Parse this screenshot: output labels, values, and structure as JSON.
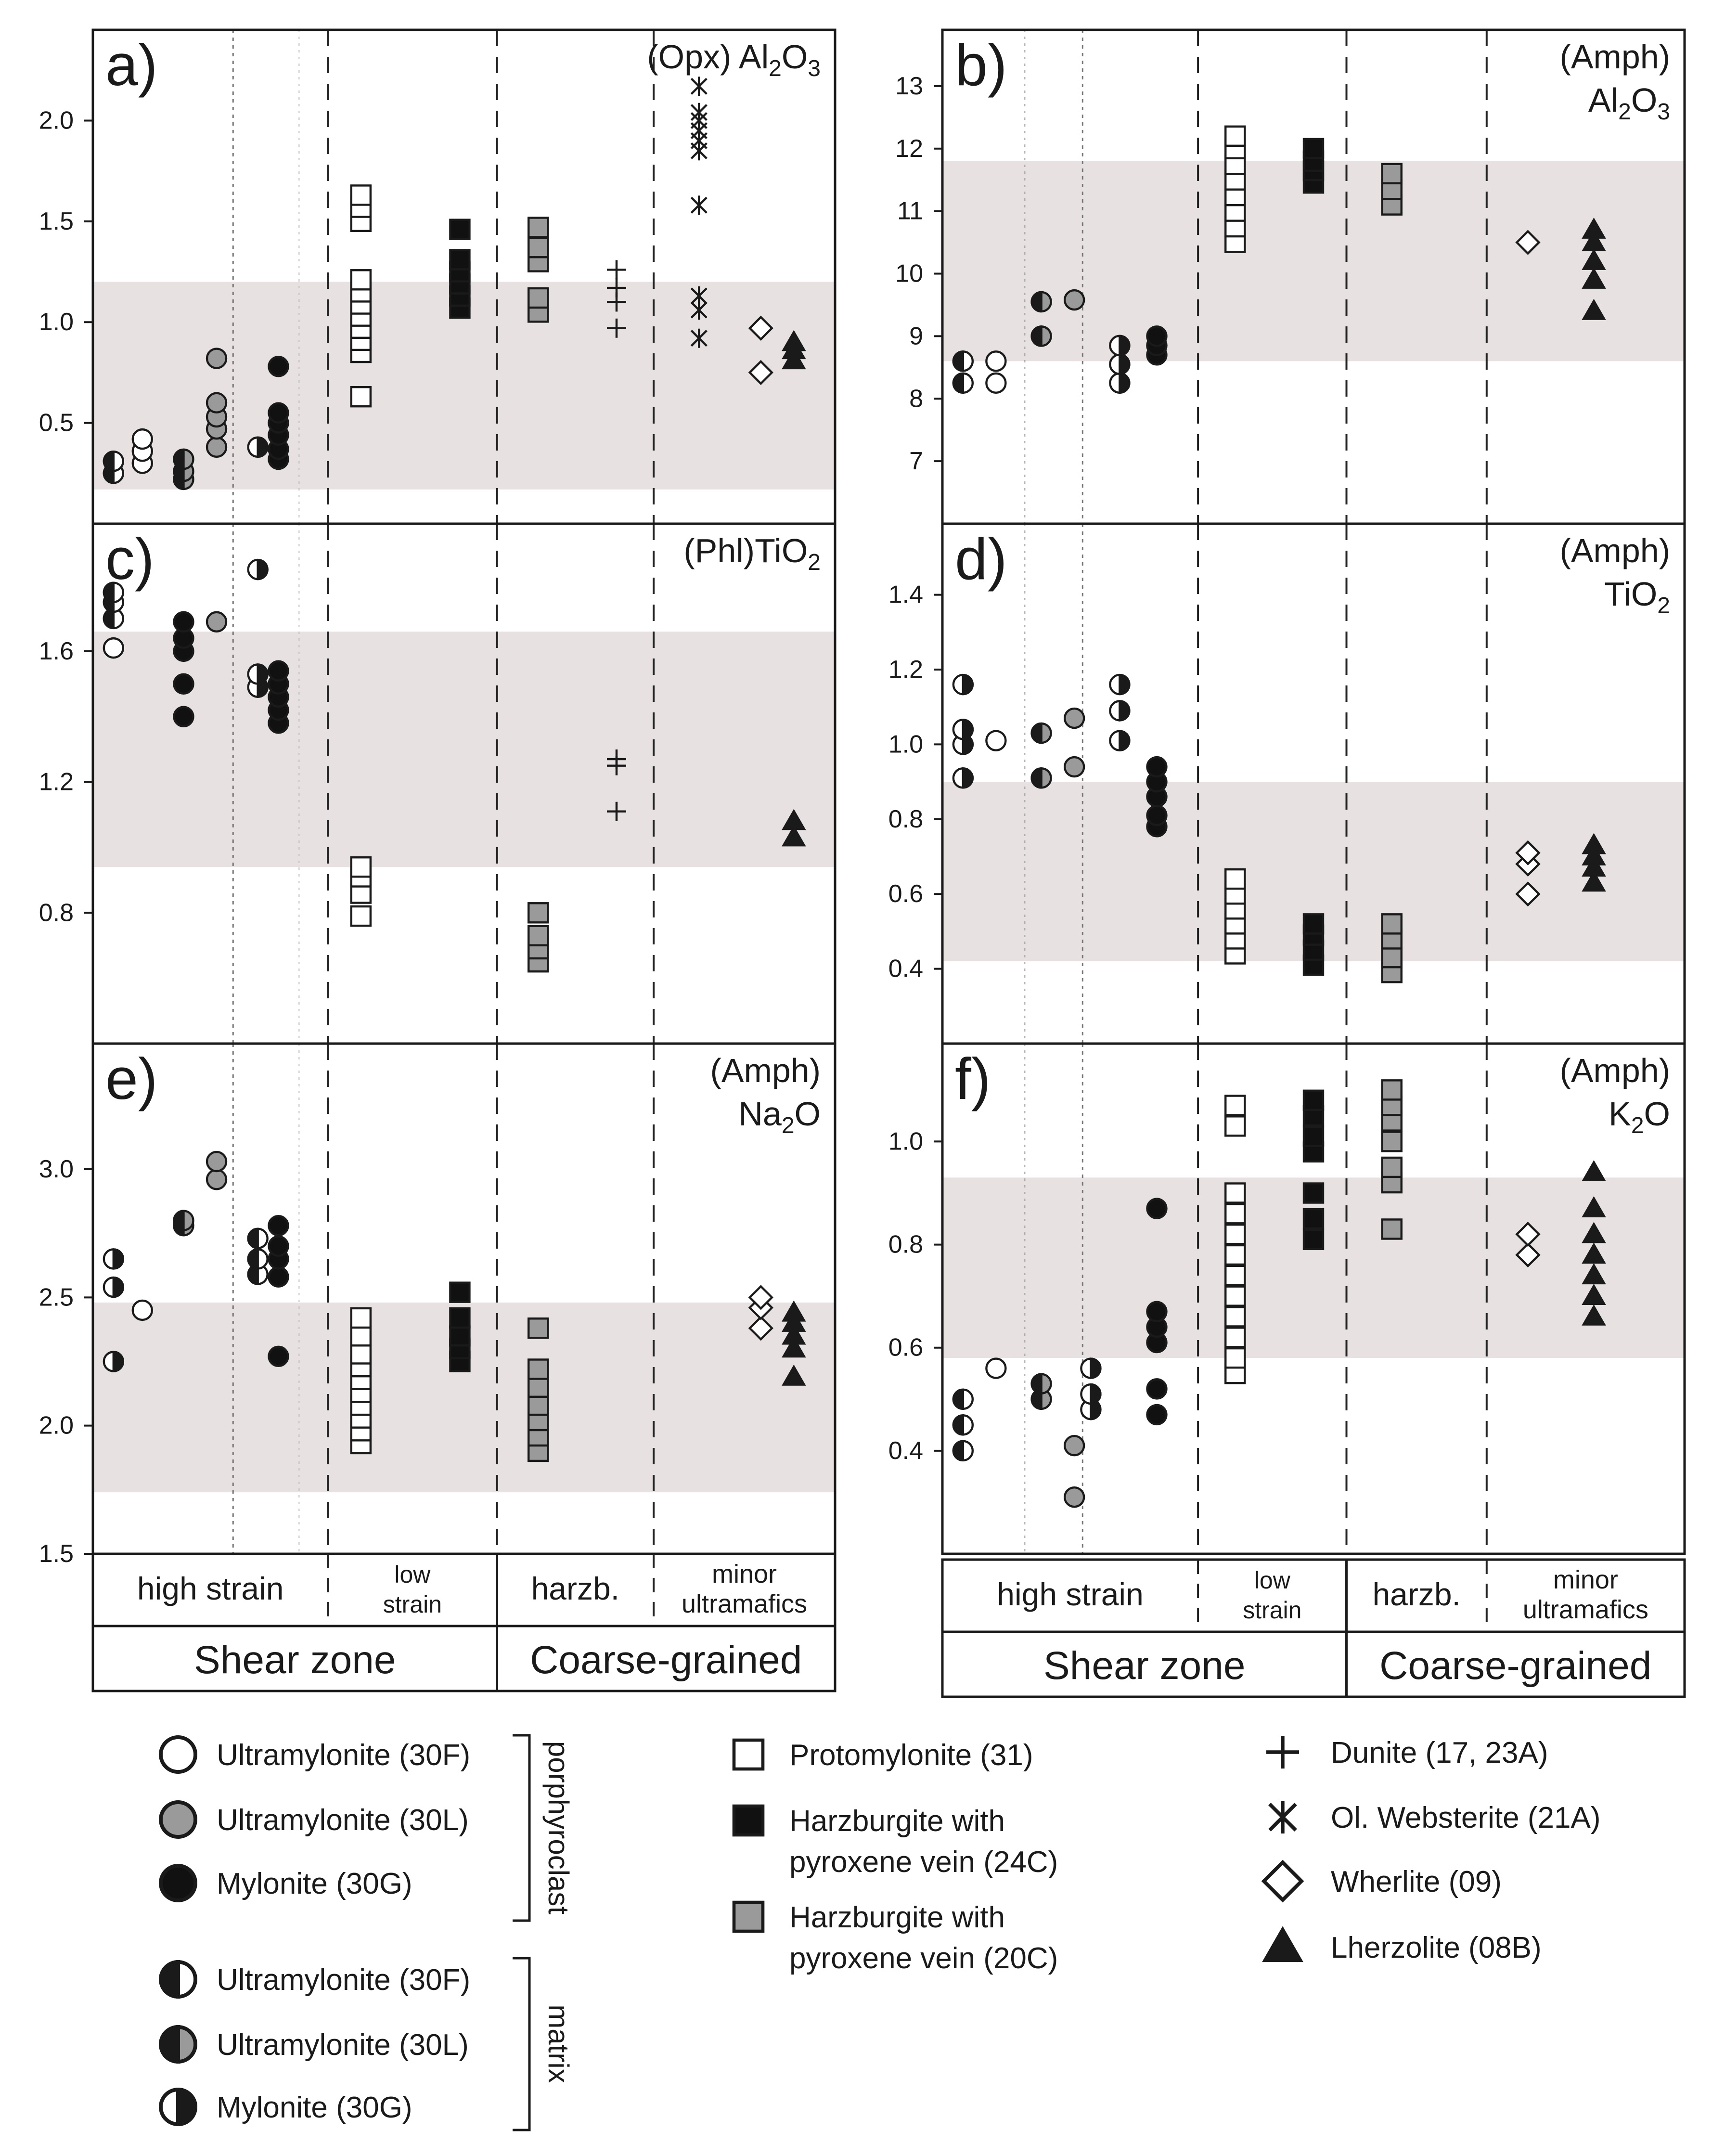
{
  "markers": {
    "ultramylonite-30F-porph": {
      "kind": "circle",
      "fill": "#ffffff"
    },
    "ultramylonite-30L-porph": {
      "kind": "circle",
      "fill": "#9a9a9a"
    },
    "mylonite-30G-porph": {
      "kind": "circle",
      "fill": "#111111"
    },
    "ultramylonite-30F-matrix": {
      "kind": "circle-half-left",
      "fill": "#ffffff"
    },
    "ultramylonite-30L-matrix": {
      "kind": "circle-half-left-grey",
      "fill": "#9a9a9a"
    },
    "mylonite-30G-matrix": {
      "kind": "circle-half-right",
      "fill": "#ffffff"
    },
    "protomylonite-31": {
      "kind": "square",
      "fill": "#ffffff"
    },
    "harzburgite-24C": {
      "kind": "square",
      "fill": "#111111"
    },
    "harzburgite-20C": {
      "kind": "square",
      "fill": "#9a9a9a"
    },
    "dunite": {
      "kind": "plus",
      "fill": "#111111"
    },
    "ol-websterite": {
      "kind": "asterisk",
      "fill": "#111111"
    },
    "wherlite": {
      "kind": "diamond",
      "fill": "#ffffff"
    },
    "lherzolite": {
      "kind": "triangle",
      "fill": "#111111"
    }
  },
  "bottom_labels": {
    "high_strain": "high strain",
    "low_strain_1": "low",
    "low_strain_2": "strain",
    "harzb": "harzb.",
    "minor_1": "minor",
    "minor_2": "ultramafics",
    "shear_zone": "Shear zone",
    "coarse_grained": "Coarse-grained"
  },
  "legend": {
    "col1": [
      {
        "marker": "ultramylonite-30F-porph",
        "label": "Ultramylonite (30F)"
      },
      {
        "marker": "ultramylonite-30L-porph",
        "label": "Ultramylonite (30L)"
      },
      {
        "marker": "mylonite-30G-porph",
        "label": "Mylonite (30G)"
      },
      {
        "marker": "ultramylonite-30F-matrix",
        "label": "Ultramylonite (30F)"
      },
      {
        "marker": "ultramylonite-30L-matrix",
        "label": "Ultramylonite (30L)"
      },
      {
        "marker": "mylonite-30G-matrix",
        "label": "Mylonite (30G)"
      }
    ],
    "group_porphyroclast": "porphyroclast",
    "group_matrix": "matrix",
    "col2": [
      {
        "marker": "protomylonite-31",
        "lines": [
          "Protomylonite (31)"
        ]
      },
      {
        "marker": "harzburgite-24C",
        "lines": [
          "Harzburgite with",
          "pyroxene vein (24C)"
        ]
      },
      {
        "marker": "harzburgite-20C",
        "lines": [
          "Harzburgite with",
          "pyroxene vein (20C)"
        ]
      }
    ],
    "col3": [
      {
        "marker": "dunite",
        "label": "Dunite (17, 23A)"
      },
      {
        "marker": "ol-websterite",
        "label": "Ol. Websterite (21A)"
      },
      {
        "marker": "wherlite",
        "label": "Wherlite (09)"
      },
      {
        "marker": "lherzolite",
        "label": "Lherzolite (08B)"
      }
    ]
  },
  "chart_data": [
    {
      "id": "a",
      "type": "scatter",
      "letter": "a)",
      "title_lines": [
        [
          "(Opx) Al",
          "2",
          "O",
          "3"
        ]
      ],
      "ylim": [
        0.0,
        2.45
      ],
      "yticks": [
        0.5,
        1.0,
        1.5,
        2.0
      ],
      "ytick_labels": [
        "0.5",
        "1.0",
        "1.5",
        "2.0"
      ],
      "band": [
        0.17,
        1.2
      ],
      "series": [
        {
          "marker": "ultramylonite-30F-matrix",
          "x": 0.5,
          "values": [
            0.25,
            0.31
          ]
        },
        {
          "marker": "ultramylonite-30F-porph",
          "x": 1.2,
          "values": [
            0.3,
            0.36,
            0.42
          ]
        },
        {
          "marker": "ultramylonite-30L-matrix",
          "x": 2.2,
          "values": [
            0.22,
            0.26,
            0.32
          ]
        },
        {
          "marker": "ultramylonite-30L-porph",
          "x": 3.0,
          "values": [
            0.38,
            0.47,
            0.53,
            0.6,
            0.82
          ]
        },
        {
          "marker": "mylonite-30G-matrix",
          "x": 4.0,
          "values": [
            0.38
          ]
        },
        {
          "marker": "mylonite-30G-porph",
          "x": 4.5,
          "values": [
            0.32,
            0.37,
            0.44,
            0.5,
            0.55,
            0.78
          ]
        },
        {
          "marker": "protomylonite-31",
          "x": 6.5,
          "values": [
            0.63,
            0.85,
            0.91,
            0.97,
            1.03,
            1.09,
            1.15,
            1.21,
            1.5,
            1.57,
            1.63
          ]
        },
        {
          "marker": "harzburgite-24C",
          "x": 8.9,
          "values": [
            1.07,
            1.13,
            1.19,
            1.25,
            1.31,
            1.46
          ]
        },
        {
          "marker": "harzburgite-20C",
          "x": 10.8,
          "values": [
            1.05,
            1.12,
            1.3,
            1.37,
            1.47
          ]
        },
        {
          "marker": "dunite",
          "x": 12.7,
          "values": [
            0.97,
            1.1,
            1.17,
            1.26
          ]
        },
        {
          "marker": "ol-websterite",
          "x": 14.7,
          "values": [
            0.92,
            1.06,
            1.13,
            1.58,
            1.85,
            1.9,
            1.95,
            2.0,
            2.04,
            2.17
          ]
        },
        {
          "marker": "wherlite",
          "x": 16.2,
          "values": [
            0.75,
            0.97
          ]
        },
        {
          "marker": "lherzolite",
          "x": 17.0,
          "values": [
            0.81,
            0.86,
            0.9
          ]
        }
      ]
    },
    {
      "id": "b",
      "type": "scatter",
      "letter": "b)",
      "title_lines": [
        [
          "(Amph)"
        ],
        [
          "Al",
          "2",
          "O",
          "3"
        ]
      ],
      "ylim": [
        6.0,
        13.9
      ],
      "yticks": [
        7,
        8,
        9,
        10,
        11,
        12,
        13
      ],
      "ytick_labels": [
        "7",
        "8",
        "9",
        "10",
        "11",
        "12",
        "13"
      ],
      "band": [
        8.6,
        11.8
      ],
      "series": [
        {
          "marker": "ultramylonite-30F-matrix",
          "x": 0.5,
          "values": [
            8.25,
            8.6
          ]
        },
        {
          "marker": "ultramylonite-30F-porph",
          "x": 1.3,
          "values": [
            8.25,
            8.6
          ]
        },
        {
          "marker": "ultramylonite-30L-matrix",
          "x": 2.4,
          "values": [
            9.0,
            9.55
          ]
        },
        {
          "marker": "ultramylonite-30L-porph",
          "x": 3.2,
          "values": [
            9.58
          ]
        },
        {
          "marker": "mylonite-30G-matrix",
          "x": 4.3,
          "values": [
            8.25,
            8.55,
            8.85
          ]
        },
        {
          "marker": "mylonite-30G-porph",
          "x": 5.2,
          "values": [
            8.7,
            8.85,
            9.0
          ]
        },
        {
          "marker": "protomylonite-31",
          "x": 7.1,
          "values": [
            10.5,
            10.75,
            11.0,
            11.25,
            11.5,
            11.75,
            12.0,
            12.2
          ]
        },
        {
          "marker": "harzburgite-24C",
          "x": 9.0,
          "values": [
            11.45,
            11.65,
            11.8,
            12.0
          ]
        },
        {
          "marker": "harzburgite-20C",
          "x": 10.9,
          "values": [
            11.1,
            11.35,
            11.6
          ]
        },
        {
          "marker": "wherlite",
          "x": 14.2,
          "values": [
            10.5
          ]
        },
        {
          "marker": "lherzolite",
          "x": 15.8,
          "values": [
            9.4,
            9.9,
            10.2,
            10.5,
            10.7
          ]
        }
      ]
    },
    {
      "id": "c",
      "type": "scatter",
      "letter": "c)",
      "title_lines": [
        [
          "(Phl)TiO",
          "2"
        ]
      ],
      "ylim": [
        0.4,
        1.99
      ],
      "yticks": [
        0.8,
        1.2,
        1.6
      ],
      "ytick_labels": [
        "0.8",
        "1.2",
        "1.6"
      ],
      "band": [
        0.94,
        1.66
      ],
      "series": [
        {
          "marker": "ultramylonite-30F-porph",
          "x": 0.5,
          "values": [
            1.61
          ]
        },
        {
          "marker": "ultramylonite-30F-matrix",
          "x": 0.5,
          "values": [
            1.7,
            1.75,
            1.78
          ]
        },
        {
          "marker": "mylonite-30G-porph",
          "x": 2.2,
          "values": [
            1.4,
            1.5,
            1.6,
            1.64,
            1.69
          ]
        },
        {
          "marker": "ultramylonite-30L-porph",
          "x": 3.0,
          "values": [
            1.69
          ]
        },
        {
          "marker": "mylonite-30G-matrix",
          "x": 4.0,
          "values": [
            1.49,
            1.53,
            1.85
          ]
        },
        {
          "marker": "mylonite-30G-porph",
          "x": 4.5,
          "values": [
            1.38,
            1.42,
            1.46,
            1.5,
            1.54
          ]
        },
        {
          "marker": "protomylonite-31",
          "x": 6.5,
          "values": [
            0.79,
            0.86,
            0.91,
            0.94
          ]
        },
        {
          "marker": "harzburgite-20C",
          "x": 10.8,
          "values": [
            0.65,
            0.69,
            0.73,
            0.8
          ]
        },
        {
          "marker": "dunite",
          "x": 12.7,
          "values": [
            1.11,
            1.25,
            1.27
          ]
        },
        {
          "marker": "lherzolite",
          "x": 17.0,
          "values": [
            1.03,
            1.08
          ]
        }
      ]
    },
    {
      "id": "d",
      "type": "scatter",
      "letter": "d)",
      "title_lines": [
        [
          "(Amph)"
        ],
        [
          "TiO",
          "2"
        ]
      ],
      "ylim": [
        0.2,
        1.59
      ],
      "yticks": [
        0.4,
        0.6,
        0.8,
        1.0,
        1.2,
        1.4
      ],
      "ytick_labels": [
        "0.4",
        "0.6",
        "0.8",
        "1.0",
        "1.2",
        "1.4"
      ],
      "band": [
        0.42,
        0.9
      ],
      "series": [
        {
          "marker": "mylonite-30G-matrix",
          "x": 0.5,
          "values": [
            0.91,
            1.0,
            1.04,
            1.16
          ]
        },
        {
          "marker": "ultramylonite-30F-porph",
          "x": 1.3,
          "values": [
            1.01
          ]
        },
        {
          "marker": "ultramylonite-30L-matrix",
          "x": 2.4,
          "values": [
            0.91,
            1.03
          ]
        },
        {
          "marker": "ultramylonite-30L-porph",
          "x": 3.2,
          "values": [
            0.94,
            1.07
          ]
        },
        {
          "marker": "mylonite-30G-matrix",
          "x": 4.3,
          "values": [
            1.01,
            1.09,
            1.16
          ]
        },
        {
          "marker": "mylonite-30G-porph",
          "x": 5.2,
          "values": [
            0.78,
            0.81,
            0.86,
            0.9,
            0.94
          ]
        },
        {
          "marker": "protomylonite-31",
          "x": 7.1,
          "values": [
            0.44,
            0.48,
            0.52,
            0.56,
            0.6,
            0.64
          ]
        },
        {
          "marker": "harzburgite-24C",
          "x": 9.0,
          "values": [
            0.41,
            0.45,
            0.49,
            0.52
          ]
        },
        {
          "marker": "harzburgite-20C",
          "x": 10.9,
          "values": [
            0.39,
            0.43,
            0.48,
            0.52
          ]
        },
        {
          "marker": "wherlite",
          "x": 14.2,
          "values": [
            0.6,
            0.68,
            0.71
          ]
        },
        {
          "marker": "lherzolite",
          "x": 15.8,
          "values": [
            0.63,
            0.67,
            0.7,
            0.73
          ]
        }
      ]
    },
    {
      "id": "e",
      "type": "scatter",
      "letter": "e)",
      "title_lines": [
        [
          "(Amph)"
        ],
        [
          "Na",
          "2",
          "O"
        ]
      ],
      "ylim": [
        1.5,
        3.49
      ],
      "yticks": [
        1.5,
        2.0,
        2.5,
        3.0
      ],
      "ytick_labels": [
        "1.5",
        "2.0",
        "2.5",
        "3.0"
      ],
      "band": [
        1.74,
        2.48
      ],
      "series": [
        {
          "marker": "mylonite-30G-matrix",
          "x": 0.5,
          "values": [
            2.25,
            2.54,
            2.65
          ]
        },
        {
          "marker": "ultramylonite-30F-porph",
          "x": 1.2,
          "values": [
            2.45
          ]
        },
        {
          "marker": "ultramylonite-30L-matrix",
          "x": 2.2,
          "values": [
            2.78,
            2.8
          ]
        },
        {
          "marker": "ultramylonite-30L-porph",
          "x": 3.0,
          "values": [
            2.96,
            3.03
          ]
        },
        {
          "marker": "ultramylonite-30F-matrix",
          "x": 4.0,
          "values": [
            2.59,
            2.65,
            2.73
          ]
        },
        {
          "marker": "mylonite-30G-porph",
          "x": 4.5,
          "values": [
            2.27,
            2.58,
            2.65,
            2.7,
            2.78
          ]
        },
        {
          "marker": "protomylonite-31",
          "x": 6.5,
          "values": [
            1.93,
            1.98,
            2.03,
            2.08,
            2.13,
            2.18,
            2.23,
            2.28,
            2.35,
            2.42
          ]
        },
        {
          "marker": "harzburgite-24C",
          "x": 8.9,
          "values": [
            2.25,
            2.3,
            2.35,
            2.42,
            2.52
          ]
        },
        {
          "marker": "harzburgite-20C",
          "x": 10.8,
          "values": [
            1.9,
            1.96,
            2.02,
            2.08,
            2.15,
            2.22,
            2.38
          ]
        },
        {
          "marker": "wherlite",
          "x": 16.2,
          "values": [
            2.38,
            2.46,
            2.5
          ]
        },
        {
          "marker": "lherzolite",
          "x": 17.0,
          "values": [
            2.19,
            2.3,
            2.35,
            2.4,
            2.44
          ]
        }
      ]
    },
    {
      "id": "f",
      "type": "scatter",
      "letter": "f)",
      "title_lines": [
        [
          "(Amph)"
        ],
        [
          "K",
          "2",
          "O"
        ]
      ],
      "ylim": [
        0.2,
        1.19
      ],
      "yticks": [
        0.4,
        0.6,
        0.8,
        1.0
      ],
      "ytick_labels": [
        "0.4",
        "0.6",
        "0.8",
        "1.0"
      ],
      "band": [
        0.58,
        0.93
      ],
      "series": [
        {
          "marker": "ultramylonite-30F-matrix",
          "x": 0.5,
          "values": [
            0.4,
            0.45,
            0.5
          ]
        },
        {
          "marker": "ultramylonite-30F-porph",
          "x": 1.3,
          "values": [
            0.56
          ]
        },
        {
          "marker": "ultramylonite-30L-matrix",
          "x": 2.4,
          "values": [
            0.5,
            0.53
          ]
        },
        {
          "marker": "ultramylonite-30L-porph",
          "x": 3.2,
          "values": [
            0.31,
            0.41
          ]
        },
        {
          "marker": "mylonite-30G-matrix",
          "x": 3.6,
          "values": [
            0.48,
            0.51,
            0.56
          ]
        },
        {
          "marker": "mylonite-30G-porph",
          "x": 5.2,
          "values": [
            0.47,
            0.52,
            0.61,
            0.64,
            0.67,
            0.87
          ]
        },
        {
          "marker": "protomylonite-31",
          "x": 7.1,
          "values": [
            0.55,
            0.58,
            0.62,
            0.66,
            0.7,
            0.74,
            0.78,
            0.82,
            0.86,
            0.9,
            1.03,
            1.07
          ]
        },
        {
          "marker": "harzburgite-24C",
          "x": 9.0,
          "values": [
            0.81,
            0.85,
            0.9,
            0.98,
            1.01,
            1.05,
            1.08
          ]
        },
        {
          "marker": "harzburgite-20C",
          "x": 10.9,
          "values": [
            0.83,
            0.92,
            0.95,
            1.0,
            1.04,
            1.07,
            1.1
          ]
        },
        {
          "marker": "wherlite",
          "x": 14.2,
          "values": [
            0.78,
            0.82
          ]
        },
        {
          "marker": "lherzolite",
          "x": 15.8,
          "values": [
            0.66,
            0.7,
            0.74,
            0.78,
            0.82,
            0.87,
            0.94
          ]
        }
      ]
    }
  ]
}
